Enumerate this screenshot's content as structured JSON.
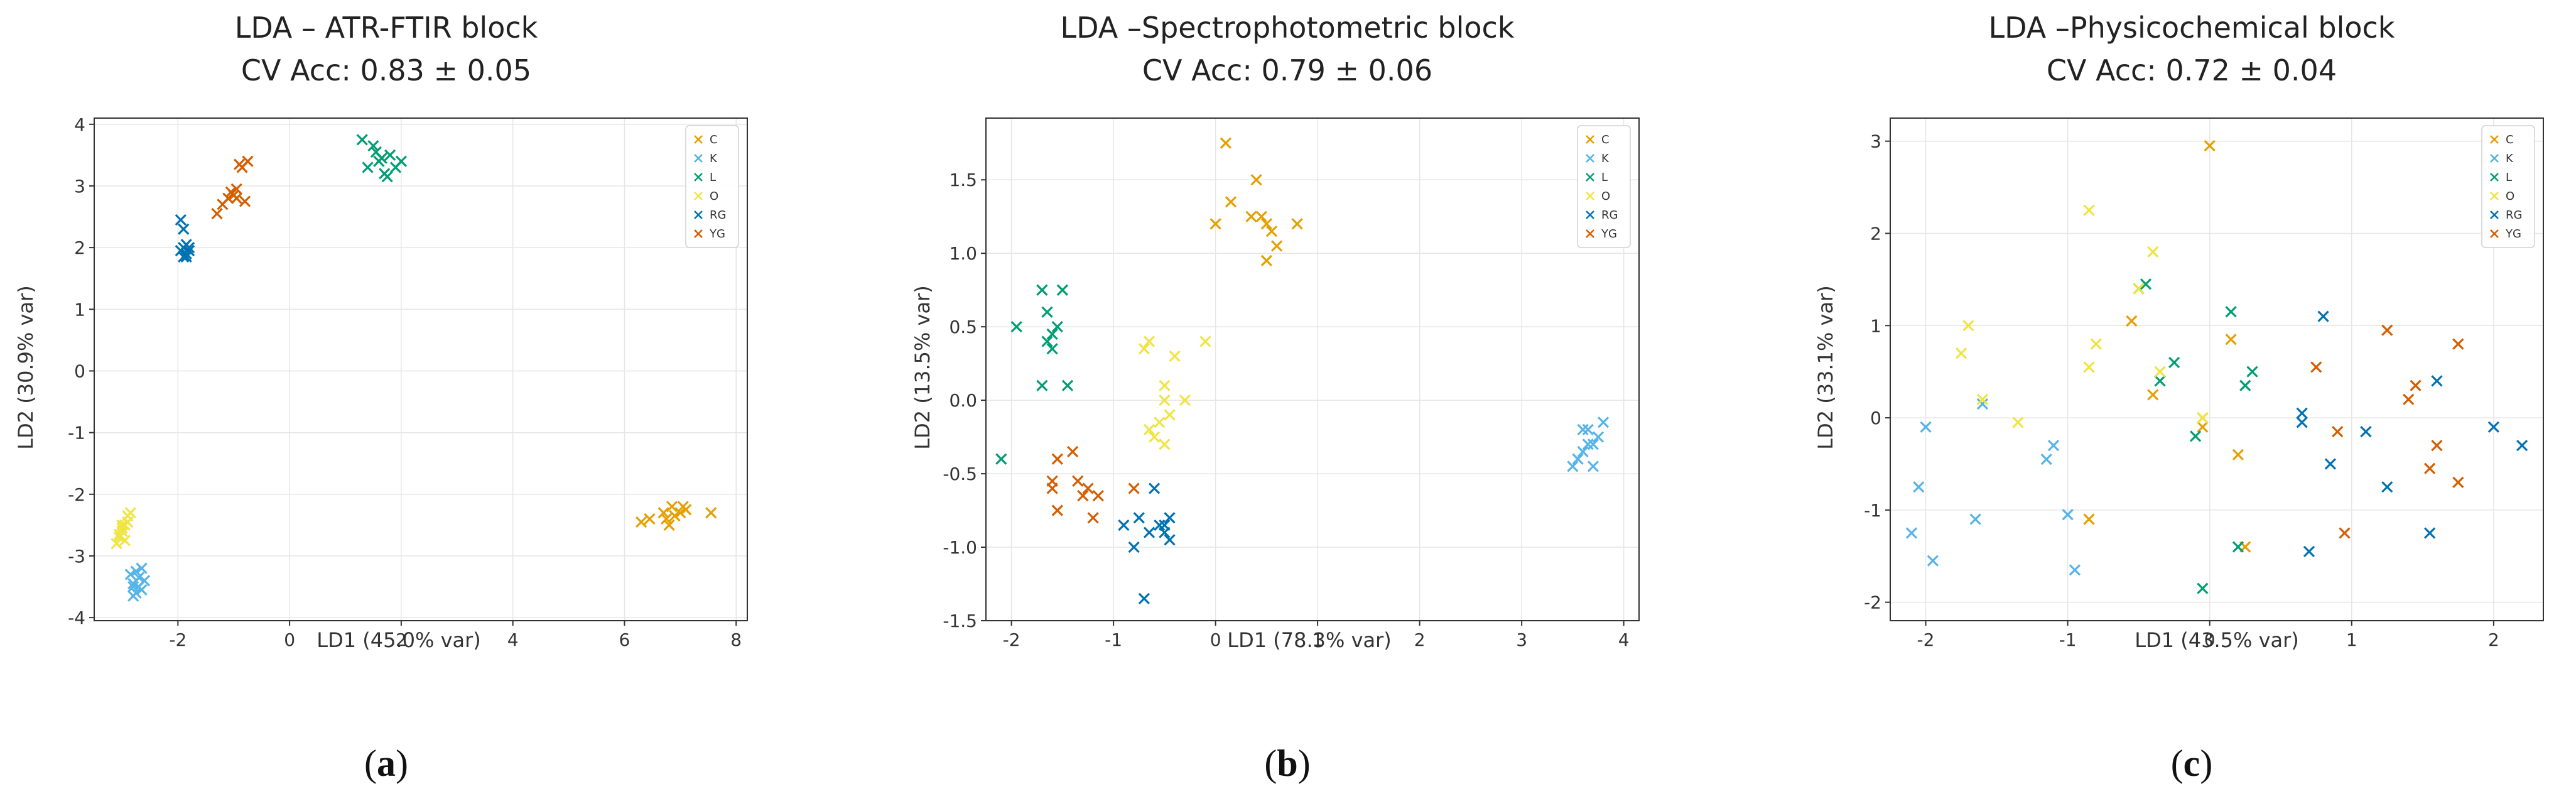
{
  "chart_data": [
    {
      "type": "scatter",
      "title": "LDA – ATR-FTIR block",
      "subtitle": "CV Acc: 0.83 ± 0.05",
      "xlabel": "LD1 (45.0% var)",
      "ylabel": "LD2 (30.9% var)",
      "xlim": [
        -3.5,
        8.2
      ],
      "ylim": [
        -4.05,
        4.1
      ],
      "xticks": [
        -2,
        0,
        2,
        4,
        6,
        8
      ],
      "yticks": [
        -4,
        -3,
        -2,
        -1,
        0,
        1,
        2,
        3,
        4
      ],
      "grid": true,
      "legend_position": "top-right",
      "marker": "x",
      "caption": "a",
      "series": [
        {
          "name": "C",
          "color": "#E69F00",
          "x": [
            6.3,
            6.45,
            6.7,
            6.8,
            6.85,
            6.9,
            7.0,
            7.05,
            7.1,
            6.75,
            7.55
          ],
          "y": [
            -2.45,
            -2.4,
            -2.3,
            -2.5,
            -2.2,
            -2.35,
            -2.3,
            -2.2,
            -2.25,
            -2.4,
            -2.3
          ]
        },
        {
          "name": "K",
          "color": "#56B4E9",
          "x": [
            -2.85,
            -2.8,
            -2.75,
            -2.7,
            -2.65,
            -2.8,
            -2.7,
            -2.6,
            -2.75,
            -2.65,
            -2.8
          ],
          "y": [
            -3.3,
            -3.45,
            -3.6,
            -3.5,
            -3.2,
            -3.65,
            -3.35,
            -3.4,
            -3.25,
            -3.55,
            -3.5
          ]
        },
        {
          "name": "L",
          "color": "#009E73",
          "x": [
            1.3,
            1.5,
            1.6,
            1.7,
            1.8,
            1.9,
            2.0,
            1.4,
            1.75,
            1.55,
            1.65
          ],
          "y": [
            3.75,
            3.65,
            3.4,
            3.2,
            3.5,
            3.3,
            3.4,
            3.3,
            3.15,
            3.55,
            3.45
          ]
        },
        {
          "name": "O",
          "color": "#F0E442",
          "x": [
            -3.1,
            -3.05,
            -3.0,
            -2.95,
            -2.9,
            -3.0,
            -2.95,
            -3.05,
            -2.9,
            -2.85,
            -3.0
          ],
          "y": [
            -2.8,
            -2.7,
            -2.55,
            -2.5,
            -2.35,
            -2.6,
            -2.75,
            -2.65,
            -2.45,
            -2.3,
            -2.5
          ]
        },
        {
          "name": "RG",
          "color": "#0072B2",
          "x": [
            -1.95,
            -1.9,
            -1.85,
            -1.8,
            -1.9,
            -1.85,
            -1.8,
            -1.95,
            -1.85,
            -1.9
          ],
          "y": [
            2.45,
            2.3,
            2.05,
            1.95,
            1.85,
            1.9,
            2.0,
            1.95,
            1.85,
            2.0
          ]
        },
        {
          "name": "YG",
          "color": "#D55E00",
          "x": [
            -1.3,
            -1.2,
            -1.1,
            -1.0,
            -0.95,
            -0.9,
            -0.85,
            -0.8,
            -1.05,
            -0.95,
            -0.75
          ],
          "y": [
            2.55,
            2.7,
            2.8,
            2.85,
            2.8,
            3.35,
            3.3,
            2.75,
            2.9,
            2.95,
            3.4
          ]
        }
      ]
    },
    {
      "type": "scatter",
      "title": "LDA –Spectrophotometric block",
      "subtitle": "CV Acc: 0.79 ± 0.06",
      "xlabel": "LD1 (78.3% var)",
      "ylabel": "LD2 (13.5% var)",
      "xlim": [
        -2.25,
        4.15
      ],
      "ylim": [
        -1.5,
        1.92
      ],
      "xticks": [
        -2,
        -1,
        0,
        1,
        2,
        3,
        4
      ],
      "yticks": [
        -1.5,
        -1.0,
        -0.5,
        0.0,
        0.5,
        1.0,
        1.5
      ],
      "grid": true,
      "legend_position": "top-right",
      "marker": "x",
      "caption": "b",
      "series": [
        {
          "name": "C",
          "color": "#E69F00",
          "x": [
            0.1,
            0.0,
            0.15,
            0.4,
            0.45,
            0.5,
            0.55,
            0.6,
            0.5,
            0.8,
            0.35
          ],
          "y": [
            1.75,
            1.2,
            1.35,
            1.5,
            1.25,
            1.2,
            1.15,
            1.05,
            0.95,
            1.2,
            1.25
          ]
        },
        {
          "name": "K",
          "color": "#56B4E9",
          "x": [
            3.5,
            3.55,
            3.6,
            3.65,
            3.7,
            3.75,
            3.6,
            3.65,
            3.7,
            3.8
          ],
          "y": [
            -0.45,
            -0.4,
            -0.35,
            -0.2,
            -0.3,
            -0.25,
            -0.2,
            -0.3,
            -0.45,
            -0.15
          ]
        },
        {
          "name": "L",
          "color": "#009E73",
          "x": [
            -2.1,
            -1.95,
            -1.7,
            -1.65,
            -1.6,
            -1.55,
            -1.5,
            -1.45,
            -1.7,
            -1.65,
            -1.6
          ],
          "y": [
            -0.4,
            0.5,
            0.75,
            0.6,
            0.45,
            0.5,
            0.75,
            0.1,
            0.1,
            0.4,
            0.35
          ]
        },
        {
          "name": "O",
          "color": "#F0E442",
          "x": [
            -0.7,
            -0.65,
            -0.6,
            -0.55,
            -0.5,
            -0.5,
            -0.45,
            -0.4,
            -0.3,
            -0.1,
            -0.5,
            -0.65
          ],
          "y": [
            0.35,
            0.4,
            -0.25,
            -0.15,
            0.1,
            0.0,
            -0.1,
            0.3,
            0.0,
            0.4,
            -0.3,
            -0.2
          ]
        },
        {
          "name": "RG",
          "color": "#0072B2",
          "x": [
            -0.9,
            -0.8,
            -0.75,
            -0.65,
            -0.6,
            -0.55,
            -0.5,
            -0.5,
            -0.45,
            -0.45,
            -0.7
          ],
          "y": [
            -0.85,
            -1.0,
            -0.8,
            -0.9,
            -0.6,
            -0.85,
            -0.9,
            -0.85,
            -0.95,
            -0.8,
            -1.35
          ]
        },
        {
          "name": "YG",
          "color": "#D55E00",
          "x": [
            -1.6,
            -1.55,
            -1.4,
            -1.35,
            -1.3,
            -1.25,
            -1.2,
            -1.15,
            -1.55,
            -1.6,
            -0.8
          ],
          "y": [
            -0.6,
            -0.4,
            -0.35,
            -0.55,
            -0.65,
            -0.6,
            -0.8,
            -0.65,
            -0.75,
            -0.55,
            -0.6
          ]
        }
      ]
    },
    {
      "type": "scatter",
      "title": "LDA –Physicochemical block",
      "subtitle": "CV Acc: 0.72 ± 0.04",
      "xlabel": "LD1 (43.5% var)",
      "ylabel": "LD2 (33.1% var)",
      "xlim": [
        -2.25,
        2.35
      ],
      "ylim": [
        -2.2,
        3.25
      ],
      "xticks": [
        -2,
        -1,
        0,
        1,
        2
      ],
      "yticks": [
        -2,
        -1,
        0,
        1,
        2,
        3
      ],
      "grid": true,
      "legend_position": "top-right",
      "marker": "x",
      "caption": "c",
      "series": [
        {
          "name": "C",
          "color": "#E69F00",
          "x": [
            -0.85,
            -0.4,
            -0.55,
            -0.05,
            -0.05,
            0.15,
            0.2,
            0.25,
            0.0
          ],
          "y": [
            -1.1,
            0.25,
            1.05,
            0.0,
            -0.1,
            0.85,
            -0.4,
            -1.4,
            2.95
          ]
        },
        {
          "name": "K",
          "color": "#56B4E9",
          "x": [
            -2.1,
            -2.05,
            -2.0,
            -1.95,
            -1.65,
            -1.6,
            -1.15,
            -1.1,
            -1.0,
            -0.95
          ],
          "y": [
            -1.25,
            -0.75,
            -0.1,
            -1.55,
            -1.1,
            0.15,
            -0.45,
            -0.3,
            -1.05,
            -1.65
          ]
        },
        {
          "name": "L",
          "color": "#009E73",
          "x": [
            -0.5,
            -0.45,
            -0.35,
            -0.25,
            -0.1,
            -0.05,
            0.15,
            0.25,
            0.3,
            0.2
          ],
          "y": [
            1.4,
            1.45,
            0.4,
            0.6,
            -0.2,
            -1.85,
            1.15,
            0.35,
            0.5,
            -1.4
          ]
        },
        {
          "name": "O",
          "color": "#F0E442",
          "x": [
            -1.75,
            -1.7,
            -1.6,
            -1.35,
            -0.85,
            -0.8,
            -0.4,
            -0.35,
            -0.05,
            -0.85,
            -0.5
          ],
          "y": [
            0.7,
            1.0,
            0.2,
            -0.05,
            2.25,
            0.8,
            1.8,
            0.5,
            0.0,
            0.55,
            1.4
          ]
        },
        {
          "name": "RG",
          "color": "#0072B2",
          "x": [
            0.65,
            0.7,
            0.8,
            0.85,
            1.1,
            1.25,
            1.55,
            1.6,
            2.0,
            2.2,
            0.65
          ],
          "y": [
            0.05,
            -1.45,
            1.1,
            -0.5,
            -0.15,
            -0.75,
            -1.25,
            0.4,
            -0.1,
            -0.3,
            -0.05
          ]
        },
        {
          "name": "YG",
          "color": "#D55E00",
          "x": [
            0.75,
            0.9,
            0.95,
            1.25,
            1.4,
            1.45,
            1.55,
            1.6,
            1.75,
            1.75
          ],
          "y": [
            0.55,
            -0.15,
            -1.25,
            0.95,
            0.2,
            0.35,
            -0.55,
            -0.3,
            -0.7,
            0.8
          ]
        }
      ]
    }
  ]
}
